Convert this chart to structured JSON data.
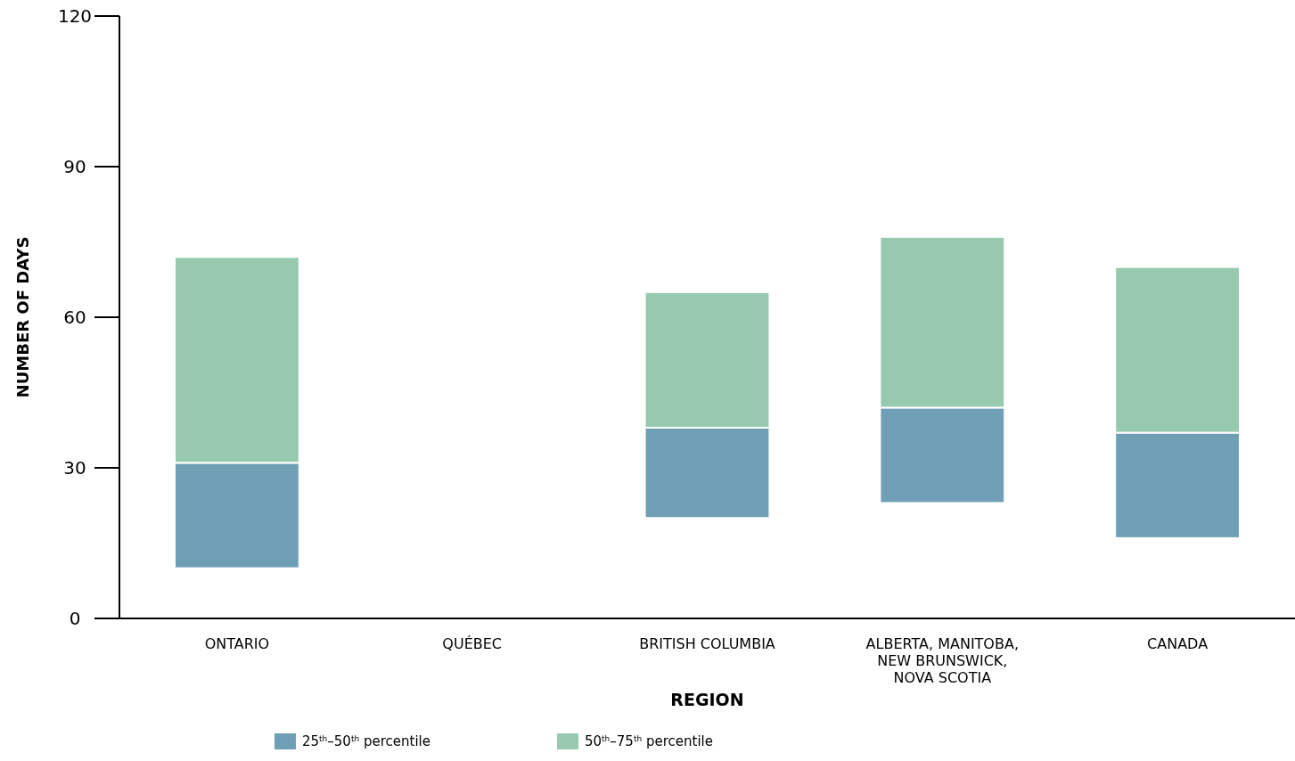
{
  "chart_data": {
    "type": "bar",
    "xlabel": "REGION",
    "ylabel": "NUMBER OF DAYS",
    "categories": [
      "ONTARIO",
      "QUÉBEC",
      "BRITISH COLUMBIA",
      "ALBERTA, MANITOBA, NEW BRUNSWICK, NOVA SCOTIA",
      "CANADA"
    ],
    "series": [
      {
        "name": "25$^{th}$–50$^{th}$ percentile",
        "color": "#6f9fb4",
        "base": [
          10,
          null,
          20,
          23,
          16
        ],
        "values": [
          21,
          null,
          18,
          19,
          21
        ]
      },
      {
        "name": "50$^{th}$–75$^{th}$ percentile",
        "color": "#96c9ae",
        "base": [
          31,
          null,
          38,
          42,
          37
        ],
        "values": [
          41,
          null,
          27,
          34,
          33
        ]
      }
    ],
    "ylim": [
      0,
      120
    ],
    "yticks": [
      0,
      30,
      60,
      90,
      120
    ],
    "grid": false,
    "legend": "bottom"
  }
}
